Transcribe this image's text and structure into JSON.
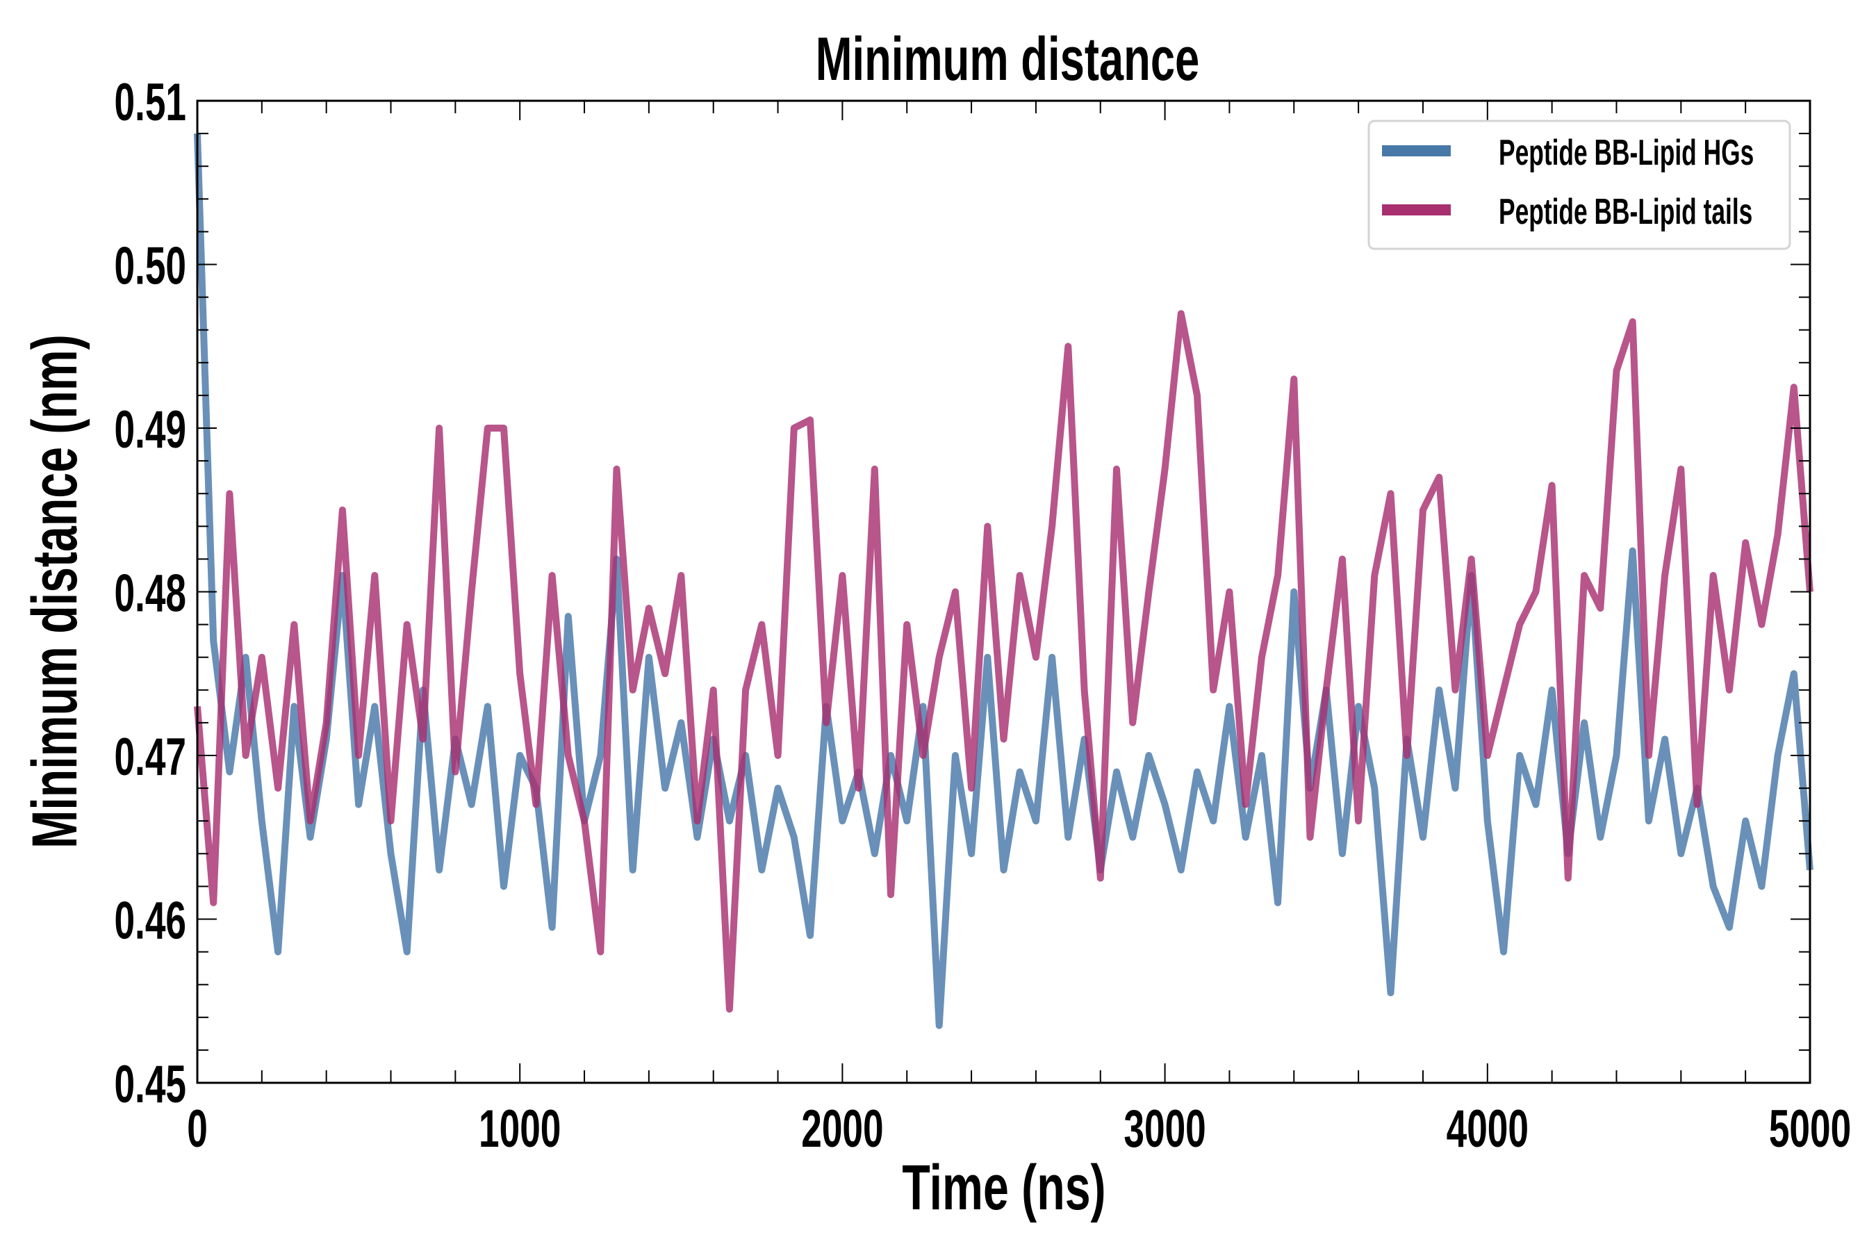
{
  "chart_data": {
    "type": "line",
    "title": "Minimum distance",
    "xlabel": "Time (ns)",
    "ylabel": "Minimum distance (nm)",
    "xlim": [
      0,
      5000
    ],
    "ylim": [
      0.45,
      0.51
    ],
    "xticks": [
      "0",
      "1000",
      "2000",
      "3000",
      "4000",
      "5000"
    ],
    "yticks": [
      "0.45",
      "0.46",
      "0.47",
      "0.48",
      "0.49",
      "0.50",
      "0.51"
    ],
    "grid": false,
    "legend_position": "top-right",
    "x_step": 50,
    "series": [
      {
        "name": "Peptide BB-Lipid HGs",
        "color": "#4878a8",
        "values": [
          0.508,
          0.477,
          0.469,
          0.476,
          0.466,
          0.458,
          0.473,
          0.465,
          0.471,
          0.481,
          0.467,
          0.473,
          0.464,
          0.458,
          0.474,
          0.463,
          0.471,
          0.467,
          0.473,
          0.462,
          0.47,
          0.468,
          0.4595,
          0.4785,
          0.466,
          0.47,
          0.482,
          0.463,
          0.476,
          0.468,
          0.472,
          0.465,
          0.471,
          0.466,
          0.47,
          0.463,
          0.468,
          0.465,
          0.459,
          0.473,
          0.466,
          0.469,
          0.464,
          0.47,
          0.466,
          0.473,
          0.4535,
          0.47,
          0.464,
          0.476,
          0.463,
          0.469,
          0.466,
          0.476,
          0.465,
          0.471,
          0.463,
          0.469,
          0.465,
          0.47,
          0.467,
          0.463,
          0.469,
          0.466,
          0.473,
          0.465,
          0.47,
          0.461,
          0.48,
          0.468,
          0.474,
          0.464,
          0.473,
          0.468,
          0.4555,
          0.471,
          0.465,
          0.474,
          0.468,
          0.481,
          0.466,
          0.458,
          0.47,
          0.467,
          0.474,
          0.464,
          0.472,
          0.465,
          0.47,
          0.4825,
          0.466,
          0.471,
          0.464,
          0.468,
          0.462,
          0.4595,
          0.466,
          0.462,
          0.47,
          0.475,
          0.463
        ]
      },
      {
        "name": "Peptide BB-Lipid tails",
        "color": "#a83070",
        "values": [
          0.473,
          0.461,
          0.486,
          0.47,
          0.476,
          0.468,
          0.478,
          0.466,
          0.472,
          0.485,
          0.47,
          0.481,
          0.466,
          0.478,
          0.471,
          0.49,
          0.469,
          0.48,
          0.49,
          0.49,
          0.475,
          0.467,
          0.481,
          0.47,
          0.466,
          0.458,
          0.4875,
          0.474,
          0.479,
          0.475,
          0.481,
          0.466,
          0.474,
          0.4545,
          0.474,
          0.478,
          0.47,
          0.49,
          0.4905,
          0.472,
          0.481,
          0.468,
          0.4875,
          0.4615,
          0.478,
          0.47,
          0.476,
          0.48,
          0.468,
          0.484,
          0.471,
          0.481,
          0.476,
          0.484,
          0.495,
          0.474,
          0.4625,
          0.4875,
          0.472,
          0.48,
          0.4875,
          0.497,
          0.492,
          0.474,
          0.48,
          0.467,
          0.476,
          0.481,
          0.493,
          0.465,
          0.474,
          0.482,
          0.466,
          0.481,
          0.486,
          0.47,
          0.485,
          0.487,
          0.474,
          0.482,
          0.47,
          0.474,
          0.478,
          0.48,
          0.4865,
          0.4625,
          0.481,
          0.479,
          0.4935,
          0.4965,
          0.47,
          0.481,
          0.4875,
          0.467,
          0.481,
          0.474,
          0.483,
          0.478,
          0.4835,
          0.4925,
          0.48
        ]
      }
    ]
  }
}
